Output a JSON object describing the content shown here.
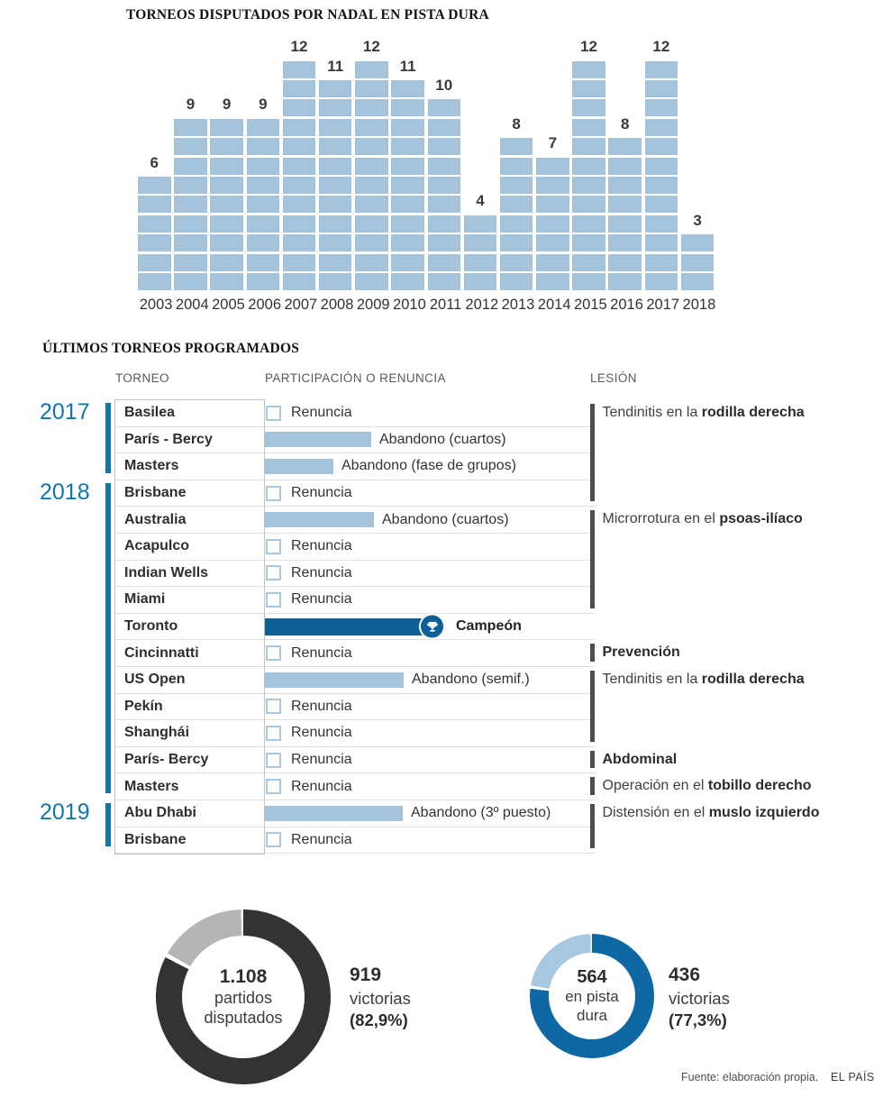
{
  "chart_data": [
    {
      "type": "bar",
      "style": "waffle-column",
      "title": "TORNEOS DISPUTADOS POR NADAL EN PISTA DURA",
      "categories": [
        "2003",
        "2004",
        "2005",
        "2006",
        "2007",
        "2008",
        "2009",
        "2010",
        "2011",
        "2012",
        "2013",
        "2014",
        "2015",
        "2016",
        "2017",
        "2018"
      ],
      "values": [
        6,
        9,
        9,
        9,
        12,
        11,
        12,
        11,
        10,
        4,
        8,
        7,
        12,
        8,
        12,
        3
      ],
      "ylim": [
        0,
        12
      ],
      "bar_color": "#a5c4dc",
      "value_labels": true
    },
    {
      "type": "pie",
      "style": "donut",
      "values": [
        919,
        189
      ],
      "pct_win": 82.9,
      "center_value": "1.108",
      "center_lines": [
        "partidos",
        "disputados"
      ],
      "side_value": "919",
      "side_line": "victorias",
      "side_pct": "(82,9%)",
      "color_main": "#333333",
      "color_rest": "#b5b5b5"
    },
    {
      "type": "pie",
      "style": "donut",
      "values": [
        436,
        128
      ],
      "pct_win": 77.3,
      "center_value": "564",
      "center_lines": [
        "en pista",
        "dura"
      ],
      "side_value": "436",
      "side_line": "victorias",
      "side_pct": "(77,3%)",
      "color_main": "#0d68a3",
      "color_rest": "#a6c8e1"
    }
  ],
  "schedule": {
    "title": "ÚLTIMOS TORNEOS PROGRAMADOS",
    "columns": {
      "torneo": "TORNEO",
      "participacion": "PARTICIPACIÓN O RENUNCIA",
      "lesion": "LESIÓN"
    },
    "year_groups": [
      {
        "year": "2017",
        "from": 0,
        "to": 2
      },
      {
        "year": "2018",
        "from": 3,
        "to": 14
      },
      {
        "year": "2019",
        "from": 15,
        "to": 16
      }
    ],
    "rows": [
      {
        "torneo": "Basilea",
        "status": "renuncia",
        "label": "Renuncia"
      },
      {
        "torneo": "París - Bercy",
        "status": "abandono",
        "label": "Abandono (cuartos)",
        "bar": 118
      },
      {
        "torneo": "Masters",
        "status": "abandono",
        "label": "Abandono (fase de grupos)",
        "bar": 76
      },
      {
        "torneo": "Brisbane",
        "status": "renuncia",
        "label": "Renuncia"
      },
      {
        "torneo": "Australia",
        "status": "abandono",
        "label": "Abandono (cuartos)",
        "bar": 121
      },
      {
        "torneo": "Acapulco",
        "status": "renuncia",
        "label": "Renuncia"
      },
      {
        "torneo": "Indian Wells",
        "status": "renuncia",
        "label": "Renuncia"
      },
      {
        "torneo": "Miami",
        "status": "renuncia",
        "label": "Renuncia"
      },
      {
        "torneo": "Toronto",
        "status": "campeon",
        "label": "Campeón",
        "bar": 186
      },
      {
        "torneo": "Cincinnatti",
        "status": "renuncia",
        "label": "Renuncia"
      },
      {
        "torneo": "US Open",
        "status": "abandono",
        "label": "Abandono (semif.)",
        "bar": 154
      },
      {
        "torneo": "Pekín",
        "status": "renuncia",
        "label": "Renuncia"
      },
      {
        "torneo": "Shanghái",
        "status": "renuncia",
        "label": "Renuncia"
      },
      {
        "torneo": "París- Bercy",
        "status": "renuncia",
        "label": "Renuncia"
      },
      {
        "torneo": "Masters",
        "status": "renuncia",
        "label": "Renuncia"
      },
      {
        "torneo": "Abu Dhabi",
        "status": "abandono",
        "label": "Abandono (3º puesto)",
        "bar": 153
      },
      {
        "torneo": "Brisbane",
        "status": "renuncia",
        "label": "Renuncia"
      }
    ],
    "lesiones": [
      {
        "prefix": "Tendinitis en la ",
        "bold": "rodilla derecha",
        "from": 0,
        "to": 3
      },
      {
        "prefix": "Microrrotura en el ",
        "bold": "psoas-ilíaco",
        "from": 4,
        "to": 7
      },
      {
        "prefix": "",
        "bold": "Prevención",
        "from": 9,
        "to": 9
      },
      {
        "prefix": "Tendinitis en la ",
        "bold": "rodilla derecha",
        "from": 10,
        "to": 12
      },
      {
        "prefix": "",
        "bold": "Abdominal",
        "from": 13,
        "to": 13
      },
      {
        "prefix": "Operación en el ",
        "bold": "tobillo derecho",
        "from": 14,
        "to": 14
      },
      {
        "prefix": "Distensión en el ",
        "bold": "muslo izquierdo",
        "from": 15,
        "to": 16
      }
    ]
  },
  "colors": {
    "accent_blue": "#1274aa",
    "bar_light_blue": "#a5c4dc",
    "champion_blue": "#0d5f95",
    "checkbox_border": "#a9c8e0",
    "lesion_bar": "#4d4d4d"
  },
  "footer": {
    "source": "Fuente: elaboración propia.",
    "brand": "EL PAÍS"
  }
}
